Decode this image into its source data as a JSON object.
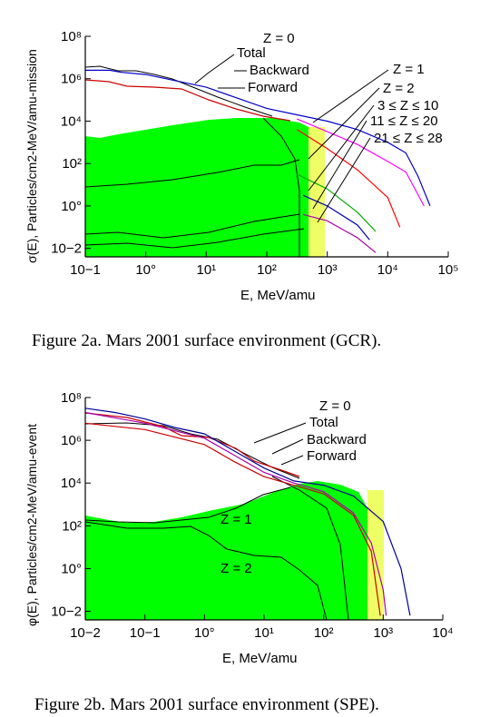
{
  "charts": [
    {
      "type": "line",
      "xlabel": "E, MeV/amu",
      "ylabel": "σ(E), Particles/cm2-MeV/amu-mission",
      "x_log": true,
      "y_log": true,
      "x_ticks": [
        "10−1",
        "10°",
        "10¹",
        "10²",
        "10³",
        "10⁴",
        "10⁵"
      ],
      "y_ticks": [
        "10−2",
        "10°",
        "10²",
        "10⁴",
        "10⁶",
        "10⁸"
      ],
      "xlim_exp": [
        -1,
        5
      ],
      "ylim_exp": [
        -2.4,
        8
      ],
      "annotations": [
        "Z = 0",
        "Total",
        "Backward",
        "Forward",
        "Z = 1",
        "Z = 2",
        "3 ≤ Z ≤ 10",
        "11 ≤ Z ≤ 20",
        "21 ≤ Z ≤ 28"
      ],
      "caption": "Figure 2a.  Mars 2001 surface environment (GCR).",
      "colors": {
        "band": "#00ff00",
        "band2": "#eeff66",
        "total": "#0000cc",
        "z1": "#ff00ff",
        "z2": "#ff0000",
        "z3": "#00aa00",
        "z11": "#0000aa",
        "z21": "#aa00aa"
      },
      "series": [
        {
          "name": "Total",
          "color": "#0000cc",
          "points": [
            [
              -1,
              6.4
            ],
            [
              -0.6,
              6.4
            ],
            [
              -0.4,
              6.3
            ],
            [
              0,
              6.2
            ],
            [
              0.5,
              5.9
            ],
            [
              1.0,
              5.6
            ],
            [
              1.5,
              5.1
            ],
            [
              2.0,
              4.6
            ],
            [
              2.5,
              4.3
            ],
            [
              3.0,
              4.0
            ],
            [
              3.5,
              3.6
            ],
            [
              4.0,
              3.0
            ],
            [
              4.3,
              2.5
            ],
            [
              4.5,
              1.4
            ],
            [
              4.7,
              0
            ]
          ]
        },
        {
          "name": "Z = 1",
          "color": "#ff00ff",
          "points": [
            [
              2.5,
              4.1
            ],
            [
              3.0,
              3.5
            ],
            [
              3.5,
              2.9
            ],
            [
              4.0,
              2.1
            ],
            [
              4.3,
              1.6
            ],
            [
              4.6,
              0
            ]
          ]
        },
        {
          "name": "Z = 2",
          "color": "#ff0000",
          "points": [
            [
              2.5,
              3.6
            ],
            [
              3.0,
              2.7
            ],
            [
              3.5,
              1.7
            ],
            [
              4.0,
              0.4
            ],
            [
              4.2,
              -1.0
            ]
          ]
        },
        {
          "name": "3 ≤ Z ≤ 10",
          "color": "#00aa00",
          "points": [
            [
              2.5,
              1.5
            ],
            [
              3.0,
              0.8
            ],
            [
              3.5,
              -0.3
            ],
            [
              3.8,
              -1.2
            ]
          ]
        },
        {
          "name": "11 ≤ Z ≤ 20",
          "color": "#0000aa",
          "points": [
            [
              2.6,
              0.5
            ],
            [
              3.0,
              0
            ],
            [
              3.5,
              -0.9
            ],
            [
              3.7,
              -1.6
            ]
          ]
        },
        {
          "name": "21 ≤ Z ≤ 28",
          "color": "#aa00aa",
          "points": [
            [
              2.6,
              -0.4
            ],
            [
              3.0,
              -0.7
            ],
            [
              3.5,
              -1.5
            ],
            [
              3.8,
              -2.2
            ]
          ]
        }
      ]
    },
    {
      "type": "line",
      "xlabel": "E, MeV/amu",
      "ylabel": "φ(E), Particles/cm2-MeV/amu-event",
      "x_log": true,
      "y_log": true,
      "x_ticks": [
        "10−2",
        "10−1",
        "10°",
        "10¹",
        "10²",
        "10³",
        "10⁴"
      ],
      "y_ticks": [
        "10−2",
        "10°",
        "10²",
        "10⁴",
        "10⁶",
        "10⁸"
      ],
      "xlim_exp": [
        -2,
        4
      ],
      "ylim_exp": [
        -2.4,
        8
      ],
      "annotations": [
        "Z = 0",
        "Total",
        "Backward",
        "Forward",
        "Z = 1",
        "Z = 2"
      ],
      "caption": "Figure 2b.  Mars 2001 surface environment (SPE).",
      "colors": {
        "band": "#00ff00",
        "band2": "#eeff66",
        "total": "#000099",
        "z1": "#aa00aa",
        "z2": "#cc0000"
      },
      "series": [
        {
          "name": "Total",
          "color": "#000099",
          "points": [
            [
              -2,
              7.5
            ],
            [
              -1.5,
              7.3
            ],
            [
              -1,
              7.0
            ],
            [
              -0.5,
              6.6
            ],
            [
              0,
              6.3
            ],
            [
              0.5,
              5.5
            ],
            [
              1,
              4.7
            ],
            [
              1.5,
              4.1
            ],
            [
              2,
              3.9
            ],
            [
              2.5,
              3.4
            ],
            [
              3,
              2.2
            ],
            [
              3.3,
              0
            ],
            [
              3.45,
              -2.2
            ]
          ]
        },
        {
          "name": "Z = 1",
          "color": "#aa00aa",
          "points": [
            [
              -2,
              7.3
            ],
            [
              -1,
              6.8
            ],
            [
              0,
              6.1
            ],
            [
              0.5,
              5.3
            ],
            [
              1,
              4.5
            ],
            [
              1.5,
              4.0
            ],
            [
              2,
              3.6
            ],
            [
              2.5,
              2.6
            ],
            [
              2.8,
              1.2
            ],
            [
              3.0,
              -1.0
            ],
            [
              3.05,
              -2.2
            ]
          ]
        },
        {
          "name": "Z = 2",
          "color": "#cc0000",
          "points": [
            [
              -2,
              6.8
            ],
            [
              -1,
              6.5
            ],
            [
              0,
              5.8
            ],
            [
              0.5,
              5.0
            ],
            [
              1,
              4.3
            ],
            [
              1.5,
              3.9
            ],
            [
              2,
              3.5
            ],
            [
              2.5,
              2.5
            ],
            [
              2.8,
              0.8
            ],
            [
              2.95,
              -2.2
            ]
          ]
        }
      ]
    }
  ]
}
